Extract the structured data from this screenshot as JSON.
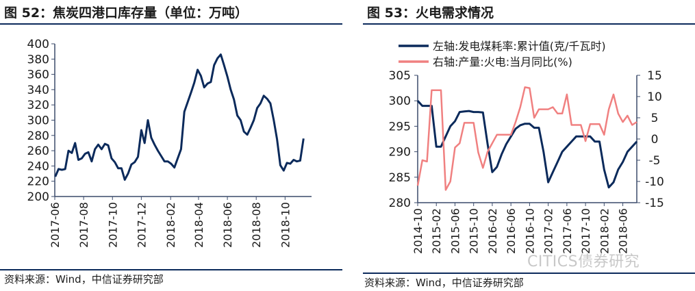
{
  "left_panel": {
    "title": "图 52：焦炭四港口库存量（单位：万吨）",
    "source": "资料来源：Wind，中信证券研究部"
  },
  "right_panel": {
    "title": "图 53：火电需求情况",
    "source": "资料来源：Wind，中信证券研究部"
  },
  "watermark": "CITICS债券研究",
  "colors": {
    "rule": "#0b2a5b",
    "navy": "#0b2a5b",
    "pink": "#f08080",
    "axis": "#3a4a6a"
  },
  "chart_data": [
    {
      "type": "line",
      "title": "图 52：焦炭四港口库存量（单位：万吨）",
      "ylim": [
        200,
        400
      ],
      "y_ticks": [
        200,
        220,
        240,
        260,
        280,
        300,
        320,
        340,
        360,
        380,
        400
      ],
      "x_ticks": [
        "2017-06",
        "2017-08",
        "2017-10",
        "2017-12",
        "2018-02",
        "2018-04",
        "2018-06",
        "2018-08",
        "2018-10"
      ],
      "x_start": "2017-06-01",
      "x_end": "2018-11-26",
      "series": [
        {
          "color": "#0b2a5b",
          "points": [
            [
              "2017-06-02",
              226
            ],
            [
              "2017-06-09",
              236
            ],
            [
              "2017-06-16",
              235
            ],
            [
              "2017-06-23",
              236
            ],
            [
              "2017-06-30",
              260
            ],
            [
              "2017-07-07",
              257
            ],
            [
              "2017-07-14",
              270
            ],
            [
              "2017-07-21",
              248
            ],
            [
              "2017-07-28",
              250
            ],
            [
              "2017-08-04",
              256
            ],
            [
              "2017-08-11",
              258
            ],
            [
              "2017-08-18",
              246
            ],
            [
              "2017-08-25",
              262
            ],
            [
              "2017-09-01",
              268
            ],
            [
              "2017-09-08",
              262
            ],
            [
              "2017-09-15",
              269
            ],
            [
              "2017-09-22",
              267
            ],
            [
              "2017-09-29",
              250
            ],
            [
              "2017-10-06",
              245
            ],
            [
              "2017-10-13",
              237
            ],
            [
              "2017-10-20",
              237
            ],
            [
              "2017-10-27",
              222
            ],
            [
              "2017-11-03",
              230
            ],
            [
              "2017-11-10",
              242
            ],
            [
              "2017-11-17",
              245
            ],
            [
              "2017-11-24",
              252
            ],
            [
              "2017-12-01",
              287
            ],
            [
              "2017-12-08",
              270
            ],
            [
              "2017-12-15",
              300
            ],
            [
              "2017-12-22",
              277
            ],
            [
              "2017-12-29",
              268
            ],
            [
              "2018-01-05",
              260
            ],
            [
              "2018-01-12",
              253
            ],
            [
              "2018-01-19",
              246
            ],
            [
              "2018-01-26",
              246
            ],
            [
              "2018-02-02",
              243
            ],
            [
              "2018-02-09",
              238
            ],
            [
              "2018-02-23",
              262
            ],
            [
              "2018-03-02",
              311
            ],
            [
              "2018-03-16",
              336
            ],
            [
              "2018-03-23",
              349
            ],
            [
              "2018-03-30",
              366
            ],
            [
              "2018-04-06",
              358
            ],
            [
              "2018-04-13",
              343
            ],
            [
              "2018-04-20",
              348
            ],
            [
              "2018-04-27",
              350
            ],
            [
              "2018-05-04",
              372
            ],
            [
              "2018-05-11",
              381
            ],
            [
              "2018-05-18",
              386
            ],
            [
              "2018-05-25",
              372
            ],
            [
              "2018-06-01",
              357
            ],
            [
              "2018-06-08",
              340
            ],
            [
              "2018-06-15",
              327
            ],
            [
              "2018-06-22",
              306
            ],
            [
              "2018-06-29",
              300
            ],
            [
              "2018-07-06",
              285
            ],
            [
              "2018-07-13",
              281
            ],
            [
              "2018-07-20",
              290
            ],
            [
              "2018-07-27",
              300
            ],
            [
              "2018-08-03",
              316
            ],
            [
              "2018-08-10",
              322
            ],
            [
              "2018-08-17",
              332
            ],
            [
              "2018-08-24",
              328
            ],
            [
              "2018-08-31",
              322
            ],
            [
              "2018-09-07",
              300
            ],
            [
              "2018-09-14",
              275
            ],
            [
              "2018-09-21",
              241
            ],
            [
              "2018-09-28",
              234
            ],
            [
              "2018-10-05",
              244
            ],
            [
              "2018-10-12",
              243
            ],
            [
              "2018-10-19",
              248
            ],
            [
              "2018-10-26",
              246
            ],
            [
              "2018-11-02",
              247
            ],
            [
              "2018-11-09",
              276
            ]
          ]
        }
      ]
    },
    {
      "type": "line",
      "title": "图 53：火电需求情况",
      "x_ticks": [
        "2014-10",
        "2015-02",
        "2015-06",
        "2015-10",
        "2016-02",
        "2016-06",
        "2016-10",
        "2017-02",
        "2017-06",
        "2017-10",
        "2018-02",
        "2018-06"
      ],
      "x_categories": [
        "2014-10",
        "2014-11",
        "2014-12",
        "2015-01",
        "2015-02",
        "2015-03",
        "2015-04",
        "2015-05",
        "2015-06",
        "2015-07",
        "2015-08",
        "2015-09",
        "2015-10",
        "2015-11",
        "2015-12",
        "2016-01",
        "2016-02",
        "2016-03",
        "2016-04",
        "2016-05",
        "2016-06",
        "2016-07",
        "2016-08",
        "2016-09",
        "2016-10",
        "2016-11",
        "2016-12",
        "2017-01",
        "2017-02",
        "2017-03",
        "2017-04",
        "2017-05",
        "2017-06",
        "2017-07",
        "2017-08",
        "2017-09",
        "2017-10",
        "2017-11",
        "2017-12",
        "2018-01",
        "2018-02",
        "2018-03",
        "2018-04",
        "2018-05",
        "2018-06",
        "2018-07",
        "2018-08",
        "2018-09"
      ],
      "y_left_ticks": [
        280,
        285,
        290,
        295,
        300,
        305
      ],
      "y_right_ticks": [
        -15,
        -10,
        -5,
        0,
        5,
        10,
        15
      ],
      "ylim_left": [
        280,
        305
      ],
      "ylim_right": [
        -15,
        15
      ],
      "series": [
        {
          "name": "左轴:发电煤耗率:累计值(克/千瓦时)",
          "axis": "left",
          "color": "#0b2a5b",
          "values": [
            300,
            299,
            299,
            299,
            291,
            291,
            293,
            295,
            296,
            297.8,
            297.9,
            298,
            297.8,
            297.8,
            297.7,
            291.5,
            286,
            287,
            289.5,
            291.5,
            293,
            294.5,
            295.2,
            295.5,
            295.5,
            294.7,
            294.7,
            290,
            284,
            286,
            288,
            290,
            291,
            292,
            293,
            293,
            293,
            293,
            292,
            292,
            286.5,
            283,
            284,
            286.5,
            288,
            290,
            291,
            292
          ]
        },
        {
          "name": "右轴:产量:火电:当月同比(%)",
          "axis": "right",
          "color": "#f08080",
          "values": [
            -11,
            -5,
            -5.3,
            11.5,
            11.5,
            11.5,
            -12,
            -10,
            -2,
            -1,
            3.8,
            3.8,
            3.8,
            -3.2,
            -6.8,
            -3,
            -1,
            1,
            1,
            1,
            1,
            4,
            7.5,
            12.2,
            12,
            5,
            7,
            7,
            7,
            7.5,
            6,
            6,
            10.5,
            3.3,
            3.3,
            3.3,
            -0.5,
            3.5,
            3.5,
            3.5,
            1,
            7,
            10.5,
            6,
            4,
            5.5,
            3.3,
            4
          ]
        }
      ]
    }
  ]
}
